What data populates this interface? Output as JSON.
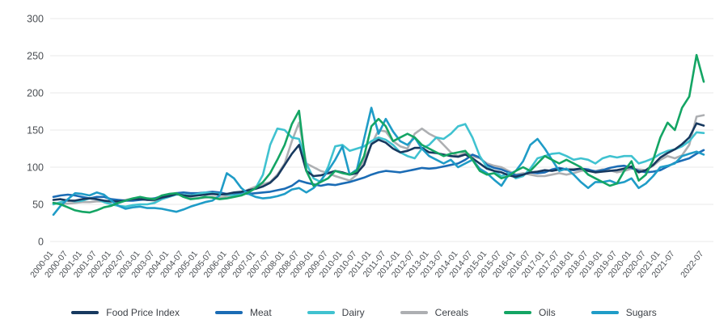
{
  "chart_data": {
    "type": "line",
    "title": "",
    "xlabel": "",
    "ylabel": "",
    "ylim": [
      0,
      300
    ],
    "y_ticks": [
      0,
      50,
      100,
      150,
      200,
      250,
      300
    ],
    "grid": "horizontal",
    "legend_position": "bottom",
    "x_start": "2000-01",
    "x_step_months": 3,
    "x_tick_labels": [
      "2000-01",
      "2000-07",
      "2001-01",
      "2001-07",
      "2002-01",
      "2002-07",
      "2003-01",
      "2003-07",
      "2004-01",
      "2004-07",
      "2005-01",
      "2005-07",
      "2006-01",
      "2006-07",
      "2007-01",
      "2007-07",
      "2008-01",
      "2008-07",
      "2009-01",
      "2009-07",
      "2010-01",
      "2010-07",
      "2011-01",
      "2011-07",
      "2012-01",
      "2012-07",
      "2013-01",
      "2013-07",
      "2014-01",
      "2014-07",
      "2015-01",
      "2015-07",
      "2016-01",
      "2016-07",
      "2017-01",
      "2017-07",
      "2018-01",
      "2018-07",
      "2019-01",
      "2019-07",
      "2020-01",
      "2020-07",
      "2021-01",
      "2021-07",
      "2022-07"
    ],
    "style": {
      "grid_color": "#e8e8e8",
      "tick_color": "#4b4f54",
      "background": "#ffffff"
    },
    "series": [
      {
        "name": "Food Price Index",
        "color": "#17395f",
        "values": [
          56,
          57,
          55,
          55,
          57,
          58,
          57,
          55,
          54,
          54,
          55,
          57,
          57,
          56,
          56,
          59,
          61,
          64,
          62,
          61,
          62,
          63,
          64,
          63,
          64,
          66,
          67,
          69,
          71,
          74,
          79,
          88,
          103,
          118,
          130,
          95,
          88,
          89,
          92,
          95,
          93,
          90,
          92,
          103,
          131,
          137,
          133,
          125,
          120,
          122,
          126,
          126,
          120,
          119,
          117,
          115,
          114,
          117,
          112,
          105,
          98,
          95,
          93,
          89,
          87,
          90,
          93,
          94,
          96,
          95,
          97,
          97,
          97,
          98,
          95,
          93,
          94,
          95,
          96,
          98,
          101,
          93,
          96,
          103,
          113,
          119,
          124,
          131,
          140,
          159,
          156
        ]
      },
      {
        "name": "Meat",
        "color": "#1b6cb5",
        "values": [
          60,
          62,
          63,
          62,
          60,
          58,
          60,
          60,
          57,
          56,
          55,
          55,
          56,
          57,
          58,
          61,
          63,
          65,
          66,
          65,
          65,
          66,
          67,
          66,
          64,
          63,
          65,
          64,
          65,
          66,
          67,
          69,
          71,
          75,
          82,
          79,
          77,
          75,
          77,
          76,
          78,
          80,
          83,
          86,
          90,
          93,
          95,
          94,
          93,
          95,
          97,
          99,
          98,
          99,
          101,
          103,
          105,
          110,
          117,
          113,
          103,
          99,
          97,
          93,
          89,
          90,
          93,
          92,
          93,
          97,
          99,
          97,
          96,
          98,
          97,
          94,
          96,
          99,
          101,
          102,
          99,
          95,
          93,
          94,
          96,
          101,
          106,
          109,
          112,
          118,
          123
        ]
      },
      {
        "name": "Dairy",
        "color": "#40c2d0",
        "values": [
          50,
          53,
          56,
          54,
          55,
          58,
          57,
          53,
          50,
          48,
          47,
          49,
          50,
          50,
          52,
          57,
          60,
          63,
          63,
          62,
          64,
          66,
          65,
          64,
          63,
          62,
          63,
          66,
          72,
          90,
          130,
          152,
          150,
          140,
          138,
          105,
          85,
          80,
          100,
          128,
          130,
          122,
          125,
          128,
          135,
          140,
          137,
          130,
          120,
          115,
          112,
          125,
          130,
          140,
          138,
          145,
          155,
          158,
          140,
          115,
          100,
          95,
          88,
          92,
          85,
          88,
          98,
          112,
          115,
          118,
          119,
          115,
          110,
          112,
          110,
          105,
          112,
          115,
          113,
          115,
          115,
          105,
          108,
          112,
          118,
          122,
          124,
          128,
          135,
          147,
          146
        ]
      },
      {
        "name": "Cereals",
        "color": "#adafb2",
        "values": [
          52,
          51,
          51,
          52,
          53,
          53,
          54,
          54,
          53,
          54,
          56,
          58,
          57,
          56,
          55,
          59,
          62,
          65,
          63,
          58,
          58,
          59,
          60,
          59,
          61,
          62,
          64,
          70,
          74,
          77,
          80,
          90,
          105,
          135,
          160,
          105,
          100,
          95,
          92,
          88,
          85,
          82,
          90,
          110,
          130,
          150,
          148,
          135,
          128,
          125,
          145,
          152,
          145,
          140,
          130,
          120,
          115,
          120,
          115,
          112,
          105,
          102,
          100,
          95,
          90,
          92,
          90,
          88,
          88,
          90,
          92,
          90,
          92,
          95,
          96,
          95,
          97,
          96,
          93,
          95,
          98,
          97,
          96,
          102,
          110,
          115,
          112,
          116,
          130,
          168,
          170
        ]
      },
      {
        "name": "Oils",
        "color": "#14a564",
        "values": [
          52,
          50,
          46,
          42,
          40,
          39,
          42,
          46,
          48,
          52,
          55,
          58,
          60,
          58,
          57,
          62,
          64,
          65,
          60,
          57,
          58,
          60,
          59,
          57,
          58,
          60,
          62,
          66,
          72,
          80,
          92,
          110,
          130,
          158,
          176,
          95,
          75,
          80,
          85,
          95,
          92,
          90,
          95,
          115,
          155,
          165,
          155,
          135,
          140,
          145,
          140,
          130,
          125,
          120,
          115,
          118,
          120,
          122,
          110,
          95,
          90,
          92,
          85,
          88,
          95,
          100,
          95,
          105,
          115,
          110,
          105,
          110,
          105,
          100,
          90,
          85,
          80,
          75,
          78,
          95,
          108,
          82,
          90,
          110,
          140,
          160,
          150,
          180,
          195,
          251,
          215
        ]
      },
      {
        "name": "Sugars",
        "color": "#1f9cc7",
        "values": [
          36,
          48,
          57,
          65,
          64,
          62,
          66,
          63,
          55,
          48,
          44,
          46,
          47,
          45,
          45,
          44,
          42,
          40,
          43,
          47,
          50,
          53,
          55,
          62,
          92,
          85,
          72,
          64,
          60,
          58,
          59,
          61,
          64,
          70,
          72,
          66,
          72,
          82,
          95,
          110,
          128,
          90,
          97,
          138,
          180,
          145,
          165,
          148,
          135,
          130,
          140,
          125,
          115,
          110,
          105,
          110,
          100,
          105,
          110,
          98,
          92,
          83,
          75,
          90,
          95,
          108,
          130,
          138,
          125,
          110,
          95,
          98,
          90,
          80,
          72,
          80,
          80,
          82,
          78,
          80,
          85,
          72,
          78,
          88,
          100,
          102,
          105,
          115,
          118,
          121,
          117
        ]
      }
    ]
  }
}
